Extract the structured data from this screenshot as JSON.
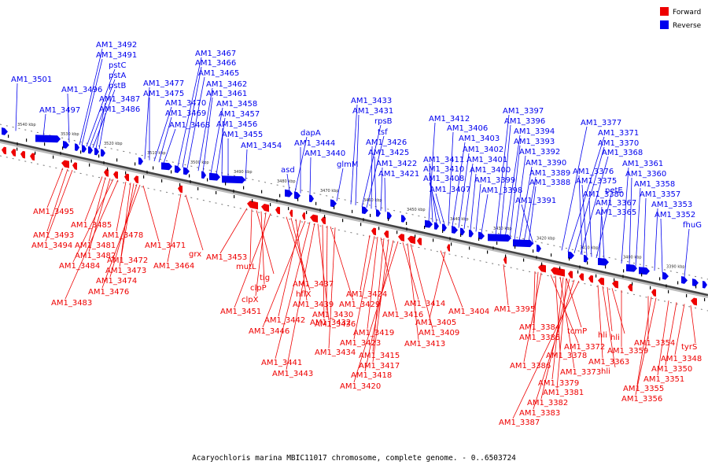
{
  "caption": "Acaryochloris marina MBIC11017 chromosome, complete genome. - 0..6503724",
  "legend": [
    {
      "label": "Forward",
      "color": "#ee0000"
    },
    {
      "label": "Reverse",
      "color": "#0000ee"
    }
  ],
  "scale_labels": [
    "3540 kbp",
    "3530 kbp",
    "3520 kbp",
    "3510 kbp",
    "3500 kbp",
    "3490 kbp",
    "3480 kbp",
    "3470 kbp",
    "3460 kbp",
    "3450 kbp",
    "3440 kbp",
    "3430 kbp",
    "3420 kbp",
    "3410 kbp",
    "3400 kbp",
    "3390 kbp"
  ],
  "reverse_genes": [
    "AM1_3501",
    "AM1_3497",
    "AM1_3496",
    "AM1_3492",
    "AM1_3491",
    "pstC",
    "pstA",
    "pstB",
    "AM1_3487",
    "AM1_3486",
    "AM1_3477",
    "AM1_3475",
    "AM1_3470",
    "AM1_3469",
    "AM1_3468",
    "AM1_3467",
    "AM1_3466",
    "AM1_3465",
    "AM1_3462",
    "AM1_3461",
    "AM1_3458",
    "AM1_3457",
    "AM1_3456",
    "AM1_3455",
    "AM1_3454",
    "asd",
    "dapA",
    "AM1_3444",
    "AM1_3440",
    "glmM",
    "AM1_3433",
    "AM1_3431",
    "rpsB",
    "tsf",
    "AM1_3426",
    "AM1_3425",
    "AM1_3422",
    "AM1_3421",
    "AM1_3412",
    "AM1_3411",
    "AM1_3410",
    "AM1_3408",
    "AM1_3407",
    "AM1_3406",
    "AM1_3403",
    "AM1_3402",
    "AM1_3401",
    "AM1_3400",
    "AM1_3399",
    "AM1_3398",
    "AM1_3397",
    "AM1_3396",
    "AM1_3394",
    "AM1_3393",
    "AM1_3392",
    "AM1_3390",
    "AM1_3389",
    "AM1_3388",
    "AM1_3391",
    "AM1_3377",
    "AM1_3371",
    "AM1_3370",
    "AM1_3368",
    "AM1_3376",
    "AM1_3375",
    "AM1_3380",
    "petE",
    "AM1_3367",
    "AM1_3365",
    "AM1_3361",
    "AM1_3360",
    "AM1_3358",
    "AM1_3357",
    "AM1_3353",
    "AM1_3352",
    "fhuG"
  ],
  "forward_genes": [
    "AM1_3495",
    "AM1_3493",
    "AM1_3494",
    "AM1_3485",
    "AM1_3481",
    "AM1_3482",
    "AM1_3484",
    "AM1_3483",
    "AM1_3478",
    "AM1_3472",
    "AM1_3473",
    "AM1_3474",
    "AM1_3476",
    "AM1_3471",
    "grx",
    "AM1_3464",
    "AM1_3453",
    "mutL",
    "tig",
    "clpP",
    "clpX",
    "AM1_3451",
    "hflX",
    "AM1_3437",
    "AM1_3439",
    "AM1_3442",
    "AM1_3446",
    "AM1_3441",
    "AM1_3443",
    "AM1_3436",
    "AM1_3432",
    "AM1_3430",
    "AM1_3429",
    "AM1_3434",
    "AM1_3424",
    "AM1_3423",
    "AM1_3419",
    "AM1_3416",
    "AM1_3415",
    "AM1_3417",
    "AM1_3418",
    "AM1_3420",
    "AM1_3414",
    "AM1_3413",
    "AM1_3409",
    "AM1_3404",
    "AM1_3405",
    "AM1_3395",
    "AM1_3384",
    "AM1_3385",
    "AM1_3386",
    "tcmP",
    "AM1_3372",
    "AM1_3378",
    "AM1_3373",
    "AM1_3379",
    "AM1_3381",
    "AM1_3382",
    "AM1_3383",
    "AM1_3387",
    "hli",
    "hli",
    "AM1_3363",
    "hli",
    "AM1_3359",
    "AM1_3354",
    "AM1_3355",
    "AM1_3356",
    "tyrS",
    "AM1_3348",
    "AM1_3350",
    "AM1_3351"
  ]
}
